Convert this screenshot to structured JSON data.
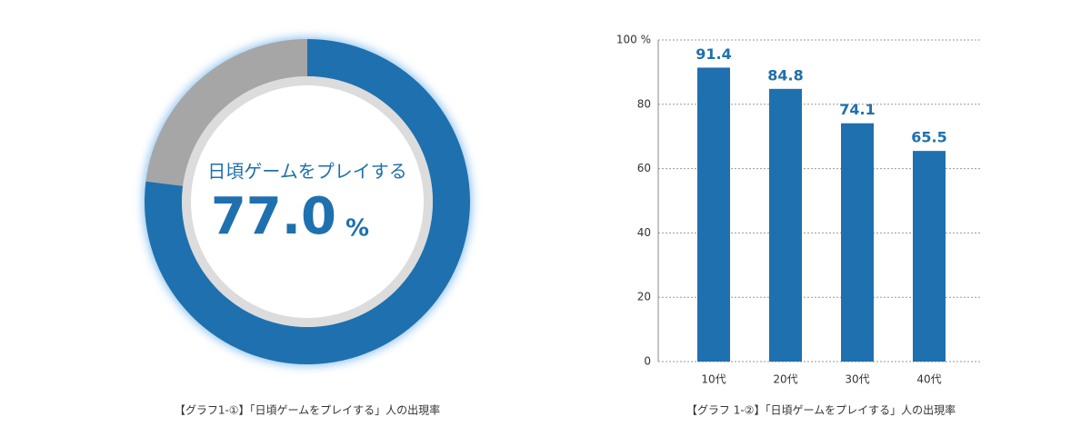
{
  "chart_data": [
    {
      "type": "donut",
      "center_label": "日頃ゲームをプレイする",
      "values": [
        77.0,
        23.0
      ],
      "value_labels": [
        "77.0",
        null
      ],
      "unit": "%",
      "colors": [
        "#1f70ae",
        "#a6a6a6"
      ],
      "caption": "【グラフ1-①】「日頃ゲームをプレイする」人の出現率"
    },
    {
      "type": "bar",
      "categories": [
        "10代",
        "20代",
        "30代",
        "40代"
      ],
      "values": [
        91.4,
        84.8,
        74.1,
        65.5
      ],
      "color": "#1f70ae",
      "ylim": [
        0,
        100
      ],
      "yticks": [
        0,
        20,
        40,
        60,
        80,
        {
          "value": 100,
          "label": "100 %"
        }
      ],
      "grid": true,
      "caption": "【グラフ 1-②】「日頃ゲームをプレイする」人の出現率"
    }
  ]
}
